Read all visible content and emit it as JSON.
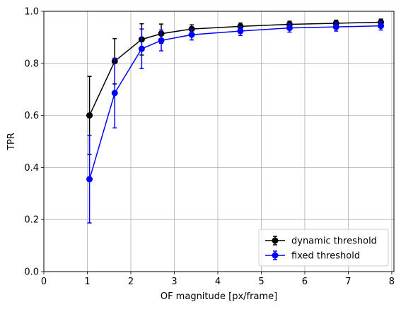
{
  "chart_data": {
    "type": "line",
    "xlabel": "OF magnitude [px/frame]",
    "ylabel": "TPR",
    "xlim": [
      0,
      8.05
    ],
    "ylim": [
      0,
      1.0
    ],
    "xticks": [
      0,
      1,
      2,
      3,
      4,
      5,
      6,
      7,
      8
    ],
    "yticks": [
      0.0,
      0.2,
      0.4,
      0.6,
      0.8,
      1.0
    ],
    "xtick_labels": [
      "0",
      "1",
      "2",
      "3",
      "4",
      "5",
      "6",
      "7",
      "8"
    ],
    "ytick_labels": [
      "0.0",
      "0.2",
      "0.4",
      "0.6",
      "0.8",
      "1.0"
    ],
    "grid": true,
    "legend_position": "bottom-right",
    "x": [
      1.05,
      1.63,
      2.25,
      2.7,
      3.4,
      4.52,
      5.65,
      6.72,
      7.75
    ],
    "series": [
      {
        "name": "dynamic threshold",
        "color": "#000000",
        "values": [
          0.6,
          0.808,
          0.892,
          0.914,
          0.932,
          0.942,
          0.95,
          0.954,
          0.958
        ],
        "errors": [
          0.15,
          0.087,
          0.06,
          0.037,
          0.016,
          0.013,
          0.012,
          0.012,
          0.012
        ]
      },
      {
        "name": "fixed threshold",
        "color": "#0000ff",
        "values": [
          0.355,
          0.686,
          0.856,
          0.888,
          0.91,
          0.924,
          0.936,
          0.94,
          0.944
        ],
        "errors": [
          0.168,
          0.134,
          0.076,
          0.04,
          0.02,
          0.017,
          0.016,
          0.016,
          0.016
        ]
      }
    ]
  }
}
